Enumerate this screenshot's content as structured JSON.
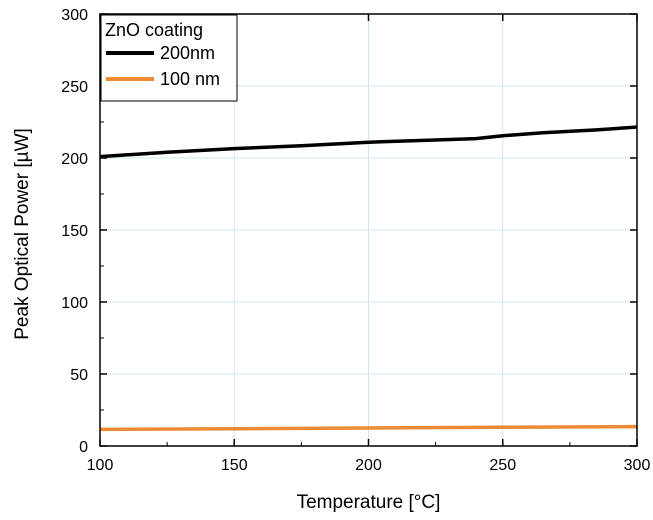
{
  "chart_data": {
    "type": "line",
    "xlabel": "Temperature [°C]",
    "ylabel": "Peak Optical Power [µW]",
    "xlim": [
      100,
      300
    ],
    "ylim": [
      0,
      300
    ],
    "x_ticks": [
      100,
      150,
      200,
      250,
      300
    ],
    "y_ticks": [
      0,
      50,
      100,
      150,
      200,
      250,
      300
    ],
    "x_tick_labels": [
      "100",
      "150",
      "200",
      "250",
      "300"
    ],
    "y_tick_labels": [
      "0",
      "50",
      "100",
      "150",
      "200",
      "250",
      "300"
    ],
    "grid": true,
    "legend": {
      "title": "ZnO coating",
      "placement": "top-left"
    },
    "series": [
      {
        "name": "200nm",
        "color": "#000000",
        "x": [
          100,
          125,
          150,
          175,
          200,
          225,
          240,
          250,
          265,
          285,
          300
        ],
        "y": [
          201,
          204,
          206.5,
          208.5,
          211,
          212.5,
          213.5,
          215.5,
          217.5,
          219.5,
          221.5
        ]
      },
      {
        "name": "100 nm",
        "color": "#ef8a33",
        "x": [
          100,
          150,
          200,
          250,
          300
        ],
        "y": [
          11.5,
          12,
          12.5,
          13,
          13.5
        ]
      }
    ]
  }
}
